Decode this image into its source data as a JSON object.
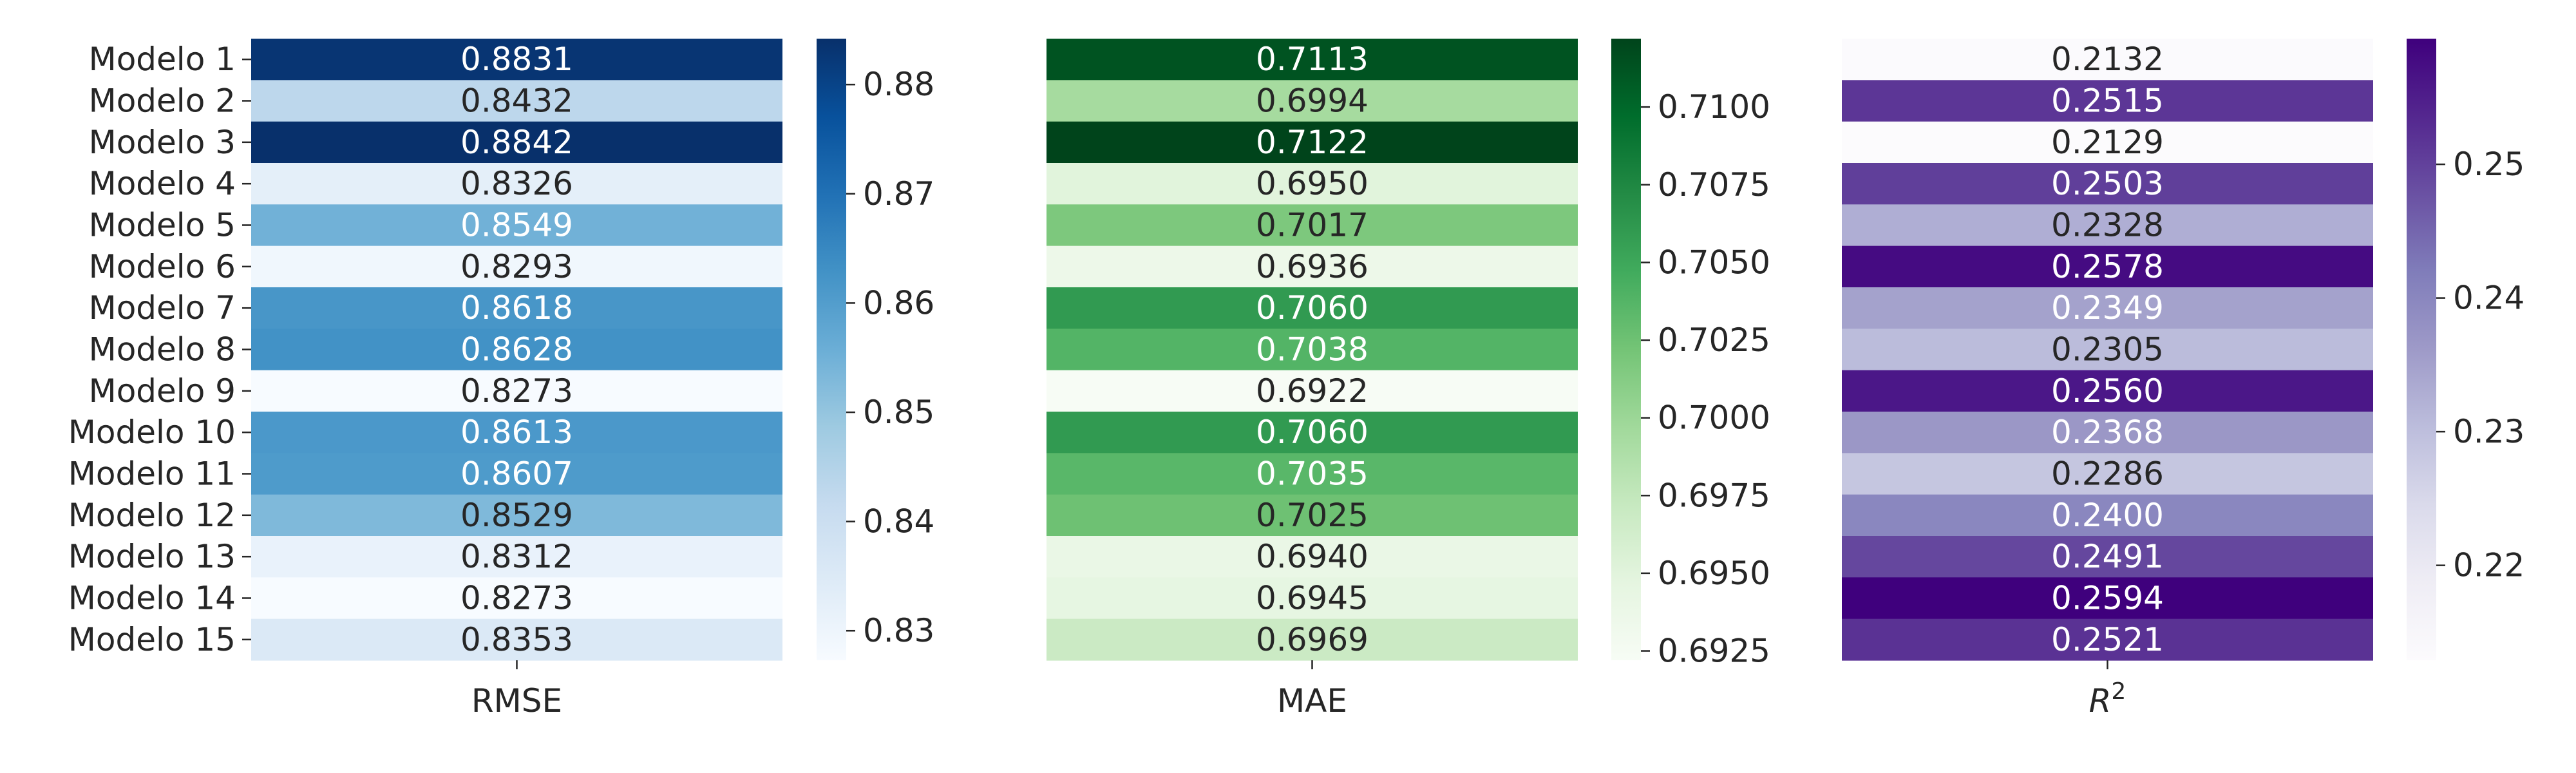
{
  "chart_data": [
    {
      "type": "heatmap",
      "title": "",
      "xlabel": "RMSE",
      "ylabel": "",
      "categories": [
        "Modelo 1",
        "Modelo 2",
        "Modelo 3",
        "Modelo 4",
        "Modelo 5",
        "Modelo 6",
        "Modelo 7",
        "Modelo 8",
        "Modelo 9",
        "Modelo 10",
        "Modelo 11",
        "Modelo 12",
        "Modelo 13",
        "Modelo 14",
        "Modelo 15"
      ],
      "values": [
        0.8831,
        0.8432,
        0.8842,
        0.8326,
        0.8549,
        0.8293,
        0.8618,
        0.8628,
        0.8273,
        0.8613,
        0.8607,
        0.8529,
        0.8312,
        0.8273,
        0.8353
      ],
      "labels": [
        "0.8831",
        "0.8432",
        "0.8842",
        "0.8326",
        "0.8549",
        "0.8293",
        "0.8618",
        "0.8628",
        "0.8273",
        "0.8613",
        "0.8607",
        "0.8529",
        "0.8312",
        "0.8273",
        "0.8353"
      ],
      "colormap": "Blues",
      "cmap_stops": [
        "#f7fbff",
        "#deebf7",
        "#c6dbef",
        "#9ecae1",
        "#6baed6",
        "#4292c6",
        "#2171b5",
        "#08519c",
        "#08306b"
      ],
      "colorbar_range": [
        0.8273,
        0.8842
      ],
      "colorbar_ticks": [
        0.83,
        0.84,
        0.85,
        0.86,
        0.87,
        0.88
      ],
      "colorbar_tick_labels": [
        "0.83",
        "0.84",
        "0.85",
        "0.86",
        "0.87",
        "0.88"
      ]
    },
    {
      "type": "heatmap",
      "title": "",
      "xlabel": "MAE",
      "ylabel": "",
      "categories": [
        "Modelo 1",
        "Modelo 2",
        "Modelo 3",
        "Modelo 4",
        "Modelo 5",
        "Modelo 6",
        "Modelo 7",
        "Modelo 8",
        "Modelo 9",
        "Modelo 10",
        "Modelo 11",
        "Modelo 12",
        "Modelo 13",
        "Modelo 14",
        "Modelo 15"
      ],
      "values": [
        0.7113,
        0.6994,
        0.7122,
        0.695,
        0.7017,
        0.6936,
        0.706,
        0.7038,
        0.6922,
        0.706,
        0.7035,
        0.7025,
        0.694,
        0.6945,
        0.6969
      ],
      "labels": [
        "0.7113",
        "0.6994",
        "0.7122",
        "0.6950",
        "0.7017",
        "0.6936",
        "0.7060",
        "0.7038",
        "0.6922",
        "0.7060",
        "0.7035",
        "0.7025",
        "0.6940",
        "0.6945",
        "0.6969"
      ],
      "colormap": "Greens",
      "cmap_stops": [
        "#f7fcf5",
        "#e5f5e0",
        "#c7e9c0",
        "#a1d99b",
        "#74c476",
        "#41ab5d",
        "#238b45",
        "#006d2c",
        "#00441b"
      ],
      "colorbar_range": [
        0.6922,
        0.7122
      ],
      "colorbar_ticks": [
        0.6925,
        0.695,
        0.6975,
        0.7,
        0.7025,
        0.705,
        0.7075,
        0.71
      ],
      "colorbar_tick_labels": [
        "0.6925",
        "0.6950",
        "0.6975",
        "0.7000",
        "0.7025",
        "0.7050",
        "0.7075",
        "0.7100"
      ]
    },
    {
      "type": "heatmap",
      "title": "",
      "xlabel": "R",
      "xlabel_superscript": "2",
      "ylabel": "",
      "categories": [
        "Modelo 1",
        "Modelo 2",
        "Modelo 3",
        "Modelo 4",
        "Modelo 5",
        "Modelo 6",
        "Modelo 7",
        "Modelo 8",
        "Modelo 9",
        "Modelo 10",
        "Modelo 11",
        "Modelo 12",
        "Modelo 13",
        "Modelo 14",
        "Modelo 15"
      ],
      "values": [
        0.2132,
        0.2515,
        0.2129,
        0.2503,
        0.2328,
        0.2578,
        0.2349,
        0.2305,
        0.256,
        0.2368,
        0.2286,
        0.24,
        0.2491,
        0.2594,
        0.2521
      ],
      "labels": [
        "0.2132",
        "0.2515",
        "0.2129",
        "0.2503",
        "0.2328",
        "0.2578",
        "0.2349",
        "0.2305",
        "0.2560",
        "0.2368",
        "0.2286",
        "0.2400",
        "0.2491",
        "0.2594",
        "0.2521"
      ],
      "colormap": "Purples",
      "cmap_stops": [
        "#fcfbfd",
        "#efedf5",
        "#dadaeb",
        "#bcbddc",
        "#9e9ac8",
        "#807dba",
        "#6a51a3",
        "#54278f",
        "#3f007d"
      ],
      "colorbar_range": [
        0.2129,
        0.2594
      ],
      "colorbar_ticks": [
        0.22,
        0.23,
        0.24,
        0.25
      ],
      "colorbar_tick_labels": [
        "0.22",
        "0.23",
        "0.24",
        "0.25"
      ]
    }
  ]
}
